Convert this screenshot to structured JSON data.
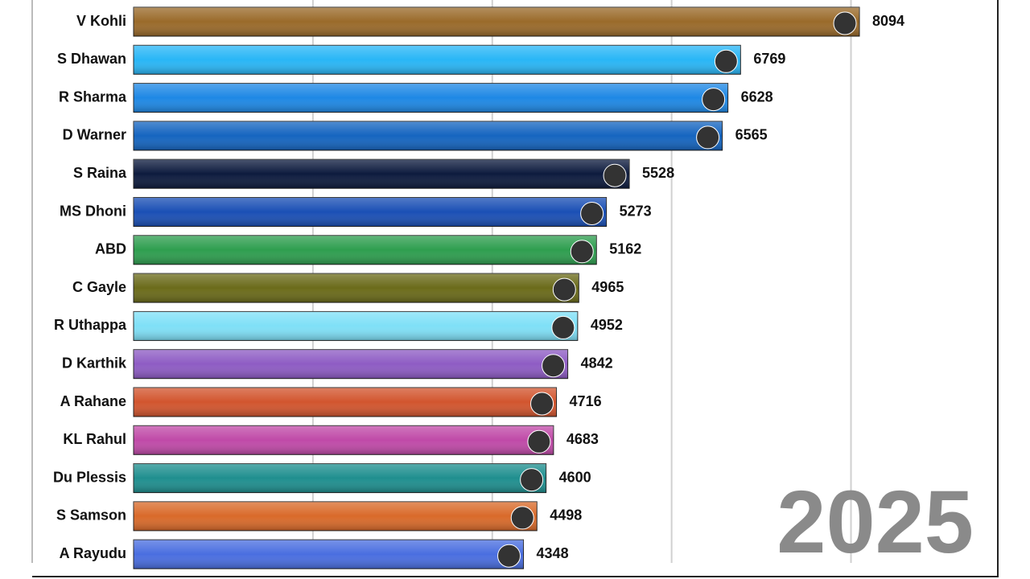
{
  "chart_data": {
    "type": "hbar",
    "annotation": "2025",
    "categories": [
      "V Kohli",
      "S Dhawan",
      "R Sharma",
      "D Warner",
      "S Raina",
      "MS Dhoni",
      "ABD",
      "C Gayle",
      "R Uthappa",
      "D Karthik",
      "A Rahane",
      "KL Rahul",
      "Du Plessis",
      "S Samson",
      "A Rayudu"
    ],
    "values": [
      8094,
      6769,
      6628,
      6565,
      5528,
      5273,
      5162,
      4965,
      4952,
      4842,
      4716,
      4683,
      4600,
      4498,
      4348
    ],
    "colors": [
      "#9a6a2a",
      "#29b6f6",
      "#1e88e5",
      "#1565c0",
      "#0d1b3e",
      "#1a4fb5",
      "#2e9e4f",
      "#6b6b1a",
      "#7fe0f7",
      "#8e5cc4",
      "#d2552e",
      "#c04aa8",
      "#1f8f8f",
      "#d96a2a",
      "#4a6ee0"
    ],
    "xlim": [
      0,
      8094
    ],
    "xticks": [
      2000,
      4000,
      6000,
      8000
    ],
    "grid": true
  }
}
